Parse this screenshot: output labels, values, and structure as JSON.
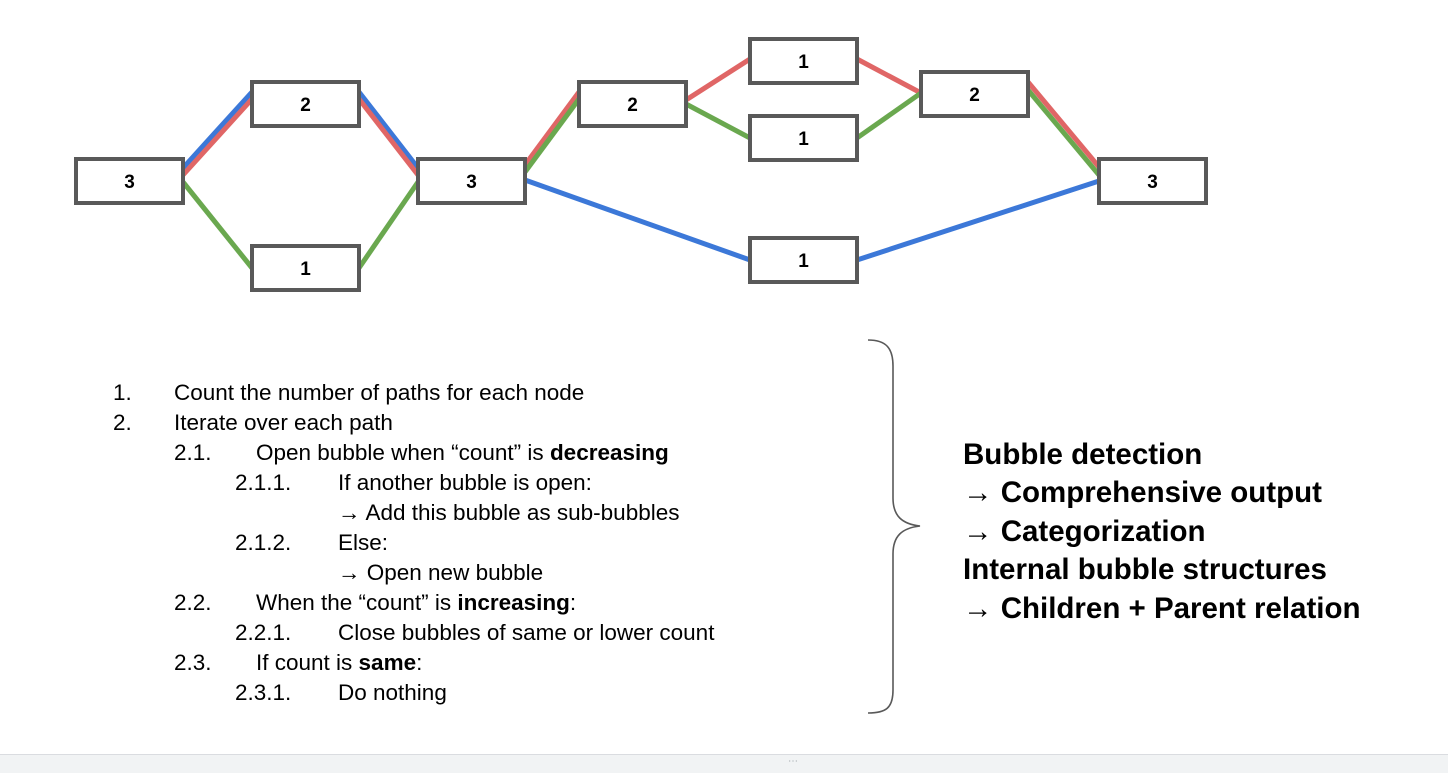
{
  "graph": {
    "nodes": [
      {
        "id": "a",
        "count": "3"
      },
      {
        "id": "b",
        "count": "2"
      },
      {
        "id": "c",
        "count": "1"
      },
      {
        "id": "d",
        "count": "3"
      },
      {
        "id": "e",
        "count": "2"
      },
      {
        "id": "f",
        "count": "1"
      },
      {
        "id": "g",
        "count": "1"
      },
      {
        "id": "h",
        "count": "1"
      },
      {
        "id": "i",
        "count": "2"
      },
      {
        "id": "j",
        "count": "3"
      }
    ],
    "path_colors": {
      "red": "#e06666",
      "blue": "#3c78d8",
      "green": "#6aa84f"
    },
    "node_border_color": "#595959"
  },
  "steps": [
    {
      "number": "1.",
      "parts": [
        {
          "text": "Count the number of paths for each node",
          "bold": false
        }
      ]
    },
    {
      "number": "2.",
      "parts": [
        {
          "text": "Iterate over each path",
          "bold": false
        }
      ]
    },
    {
      "number": "2.1.",
      "parts": [
        {
          "text": "Open bubble when “count” is ",
          "bold": false
        },
        {
          "text": "decreasing",
          "bold": true
        }
      ]
    },
    {
      "number": "2.1.1.",
      "parts": [
        {
          "text": "If another bubble is open:",
          "bold": false
        }
      ]
    },
    {
      "number": "",
      "parts": [
        {
          "text": "→ Add this bubble as sub-bubbles",
          "bold": false
        }
      ]
    },
    {
      "number": "2.1.2.",
      "parts": [
        {
          "text": "Else:",
          "bold": false
        }
      ]
    },
    {
      "number": "",
      "parts": [
        {
          "text": "→ Open new bubble",
          "bold": false
        }
      ]
    },
    {
      "number": "2.2.",
      "parts": [
        {
          "text": "When the “count” is ",
          "bold": false
        },
        {
          "text": "increasing",
          "bold": true
        },
        {
          "text": ":",
          "bold": false
        }
      ]
    },
    {
      "number": "2.2.1.",
      "parts": [
        {
          "text": "Close bubbles of same or lower count",
          "bold": false
        }
      ]
    },
    {
      "number": "2.3.",
      "parts": [
        {
          "text": "If count is ",
          "bold": false
        },
        {
          "text": "same",
          "bold": true
        },
        {
          "text": ":",
          "bold": false
        }
      ]
    },
    {
      "number": "2.3.1.",
      "parts": [
        {
          "text": "Do nothing",
          "bold": false
        }
      ]
    }
  ],
  "summary": [
    "Bubble detection",
    "→ Comprehensive output",
    "→ Categorization",
    "Internal bubble structures",
    "→ Children + Parent relation"
  ]
}
